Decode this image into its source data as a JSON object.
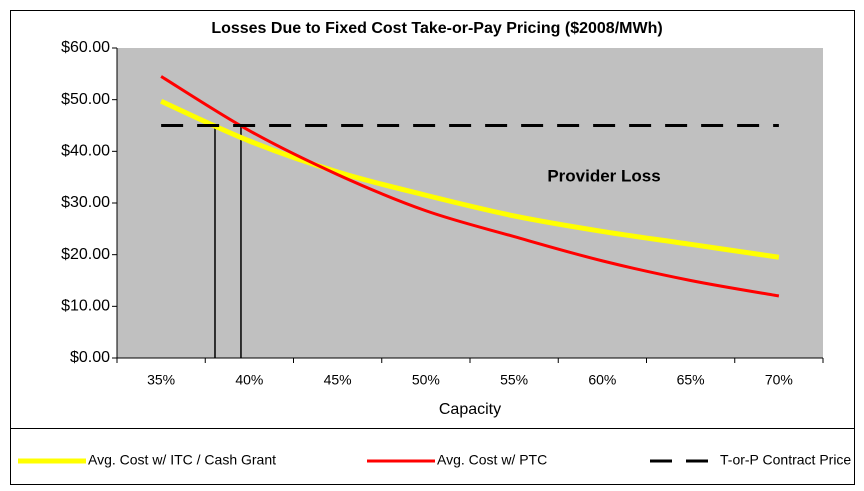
{
  "chart_data": {
    "type": "line",
    "title": "Losses Due to Fixed Cost Take-or-Pay Pricing ($2008/MWh)",
    "x_label": "Capacity",
    "annotation": "Provider Loss",
    "categories": [
      "35%",
      "40%",
      "45%",
      "50%",
      "55%",
      "60%",
      "65%",
      "70%"
    ],
    "series": [
      {
        "name": "Avg. Cost w/ ITC / Cash Grant",
        "color": "#ffff00",
        "style": "solid",
        "smooth": true,
        "values": [
          49.7,
          42,
          36,
          31.5,
          27.5,
          24.5,
          22,
          19.5
        ]
      },
      {
        "name": "Avg. Cost w/ PTC",
        "color": "#ff0000",
        "style": "solid",
        "smooth": true,
        "values": [
          54.5,
          44,
          35.5,
          28.5,
          23.5,
          18.8,
          15,
          12
        ]
      },
      {
        "name": "T-or-P Contract Price",
        "color": "#000000",
        "style": "dashed",
        "smooth": false,
        "values": [
          45,
          45,
          45,
          45,
          45,
          45,
          45,
          45
        ]
      }
    ],
    "ylim": [
      0,
      60
    ],
    "yticks": [
      {
        "value": 0,
        "label": "$0.00"
      },
      {
        "value": 10,
        "label": "$10.00"
      },
      {
        "value": 20,
        "label": "$20.00"
      },
      {
        "value": 30,
        "label": "$30.00"
      },
      {
        "value": 40,
        "label": "$40.00"
      },
      {
        "value": 50,
        "label": "$50.00"
      },
      {
        "value": 60,
        "label": "$60.00"
      }
    ],
    "plot_background": "#c0c0c0",
    "legend": "bottom"
  }
}
